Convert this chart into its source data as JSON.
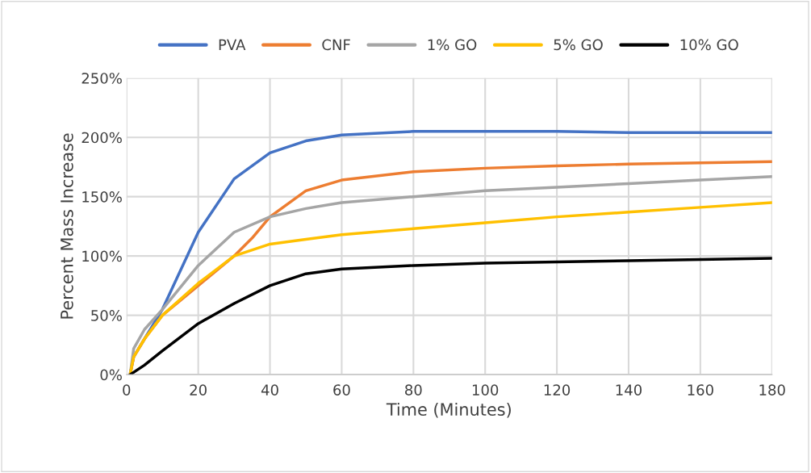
{
  "chart_data": {
    "type": "line",
    "xlabel": "Time (Minutes)",
    "ylabel": "Percent Mass Increase",
    "xlim": [
      0,
      180
    ],
    "xticks": [
      0,
      20,
      40,
      60,
      80,
      100,
      120,
      140,
      160,
      180
    ],
    "ylim": [
      0,
      250
    ],
    "yticks": [
      {
        "value": 0,
        "label": "0%"
      },
      {
        "value": 50,
        "label": "50%"
      },
      {
        "value": 100,
        "label": "100%"
      },
      {
        "value": 150,
        "label": "150%"
      },
      {
        "value": 200,
        "label": "200%"
      },
      {
        "value": 250,
        "label": "250%"
      }
    ],
    "grid": true,
    "legend": "top",
    "marker": "none",
    "line_style": "solid",
    "series": [
      {
        "name": "PVA",
        "color": "#4472c4",
        "x": [
          1,
          2,
          5,
          10,
          20,
          30,
          40,
          50,
          60,
          80,
          100,
          120,
          140,
          160,
          180
        ],
        "values": [
          0,
          15,
          30,
          55,
          120,
          165,
          187,
          197,
          202,
          205,
          205,
          205,
          204,
          204,
          204
        ]
      },
      {
        "name": "CNF",
        "color": "#ed7d31",
        "x": [
          1,
          2,
          5,
          10,
          20,
          30,
          35,
          40,
          50,
          60,
          80,
          100,
          120,
          140,
          160,
          180
        ],
        "values": [
          0,
          15,
          30,
          50,
          75,
          100,
          115,
          133,
          155,
          164,
          171,
          174,
          176,
          177.5,
          178.5,
          179.5
        ]
      },
      {
        "name": "1% GO",
        "color": "#a5a5a5",
        "x": [
          1,
          2,
          5,
          10,
          20,
          30,
          40,
          50,
          60,
          80,
          100,
          120,
          140,
          160,
          180
        ],
        "values": [
          0,
          22,
          38,
          55,
          92,
          120,
          133,
          140,
          145,
          150,
          155,
          158,
          161,
          164,
          167
        ]
      },
      {
        "name": "5% GO",
        "color": "#ffc000",
        "x": [
          1,
          2,
          5,
          10,
          20,
          30,
          40,
          50,
          60,
          80,
          100,
          120,
          140,
          160,
          180
        ],
        "values": [
          0,
          15,
          30,
          50,
          77,
          100,
          110,
          114,
          118,
          123,
          128,
          133,
          137,
          141,
          145
        ]
      },
      {
        "name": "10% GO",
        "color": "#000000",
        "x": [
          1,
          5,
          10,
          20,
          30,
          40,
          50,
          60,
          80,
          100,
          120,
          140,
          160,
          180
        ],
        "values": [
          0,
          8,
          20,
          43,
          60,
          75,
          85,
          89,
          92,
          94,
          95,
          96,
          97,
          98
        ]
      }
    ]
  }
}
